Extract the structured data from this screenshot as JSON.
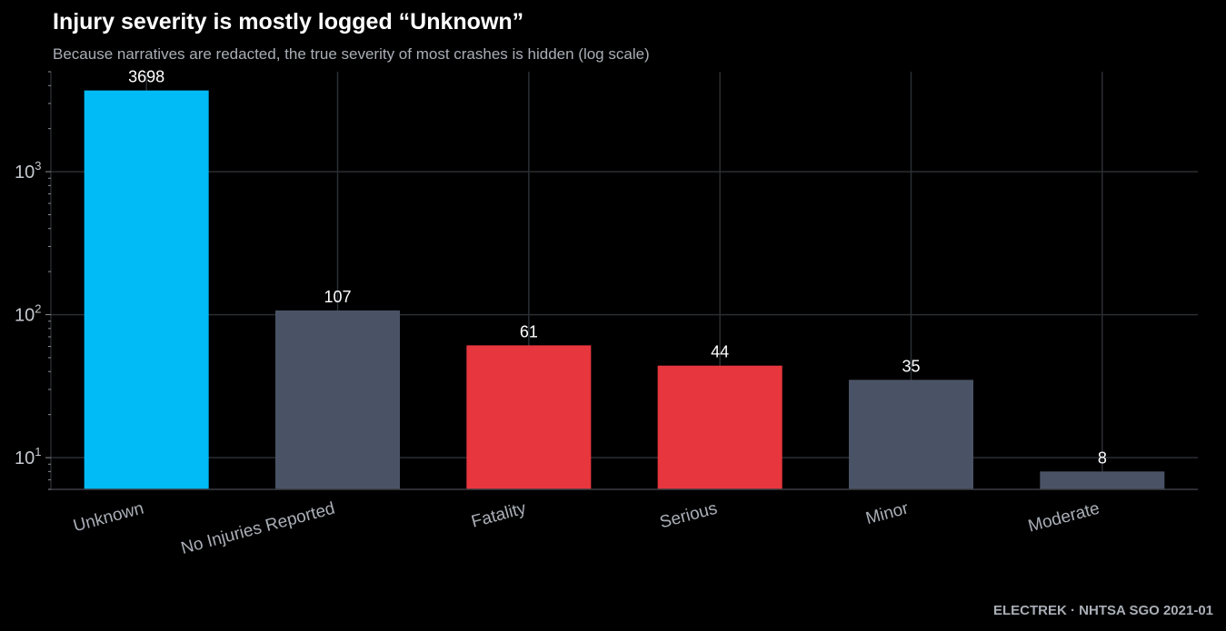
{
  "header": {
    "title": "Injury severity is mostly logged “Unknown”",
    "subtitle": "Because narratives are redacted, the true severity of most crashes is hidden (log scale)"
  },
  "footer": {
    "source": "ELECTREK · NHTSA SGO 2021-01"
  },
  "colors": {
    "background": "#000000",
    "highlight": "#00bbf5",
    "neutral": "#4a5366",
    "severe": "#e8363e",
    "grid": "#2b2e33"
  },
  "chart_data": {
    "type": "bar",
    "yscale": "log",
    "ylim": [
      6,
      5000
    ],
    "yticks": [
      {
        "value": 10,
        "base": "10",
        "exp": "1"
      },
      {
        "value": 100,
        "base": "10",
        "exp": "2"
      },
      {
        "value": 1000,
        "base": "10",
        "exp": "3"
      }
    ],
    "grid": true,
    "legend": "none",
    "categories": [
      "Unknown",
      "No Injuries Reported",
      "Fatality",
      "Serious",
      "Minor",
      "Moderate"
    ],
    "values": [
      3698,
      107,
      61,
      44,
      35,
      8
    ],
    "bar_colors": [
      "#00bbf5",
      "#4a5366",
      "#e8363e",
      "#e8363e",
      "#4a5366",
      "#4a5366"
    ]
  }
}
